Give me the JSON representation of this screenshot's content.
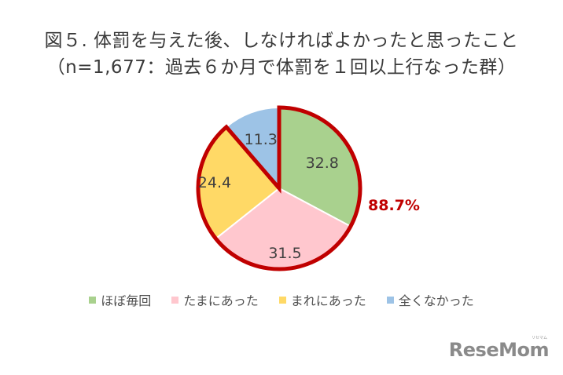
{
  "title": {
    "line1": "図５. 体罰を与えた後、しなければよかったと思ったこと",
    "line2": "（n=1,677：過去６か月で体罰を１回以上行なった群）"
  },
  "highlight": {
    "label": "88.7%",
    "color": "#c00000"
  },
  "legend": [
    {
      "label": "ほぼ毎回",
      "color": "#a9d18e"
    },
    {
      "label": "たまにあった",
      "color": "#ffc7ce"
    },
    {
      "label": "まれにあった",
      "color": "#ffd966"
    },
    {
      "label": "全くなかった",
      "color": "#9dc3e6"
    }
  ],
  "logo": {
    "text": "ReseMom",
    "sub": "リセマム"
  },
  "chart_data": {
    "type": "pie",
    "title": "図５. 体罰を与えた後、しなければよかったと思ったこと（n=1,677：過去６か月で体罰を１回以上行なった群）",
    "categories": [
      "ほぼ毎回",
      "たまにあった",
      "まれにあった",
      "全くなかった"
    ],
    "values": [
      32.8,
      31.5,
      24.4,
      11.3
    ],
    "colors": [
      "#a9d18e",
      "#ffc7ce",
      "#ffd966",
      "#9dc3e6"
    ],
    "start_angle": "12 o'clock, clockwise",
    "annotations": [
      {
        "text": "88.7%",
        "note": "Sum of ほぼ毎回 + たまにあった + まれにあった, highlighted with red outline"
      }
    ],
    "legend_position": "bottom"
  }
}
